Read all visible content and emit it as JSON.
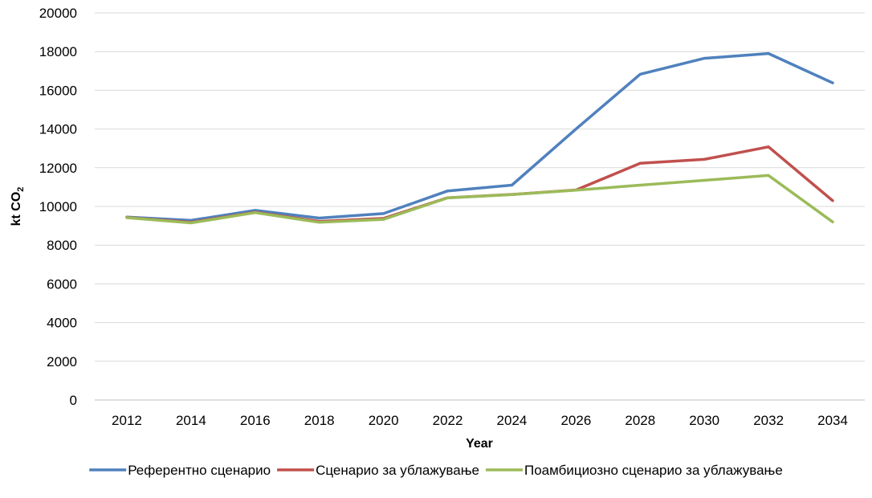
{
  "chart_data": {
    "type": "line",
    "title": "",
    "xlabel": "Year",
    "ylabel": "kt CO",
    "ylabel_subscript": "2",
    "ylim": [
      0,
      20000
    ],
    "yticks": [
      0,
      2000,
      4000,
      6000,
      8000,
      10000,
      12000,
      14000,
      16000,
      18000,
      20000
    ],
    "x": [
      "2012",
      "2014",
      "2016",
      "2018",
      "2020",
      "2022",
      "2024",
      "2026",
      "2028",
      "2030",
      "2032",
      "2034"
    ],
    "grid": true,
    "legend_position": "bottom",
    "series": [
      {
        "name": "Референтно сценарио",
        "color": "#4f81bd",
        "values": [
          9450,
          9280,
          9800,
          9400,
          9630,
          10800,
          11100,
          14000,
          16830,
          17650,
          17900,
          16380
        ]
      },
      {
        "name": "Сценарио за ублажување",
        "color": "#c0504d",
        "values": [
          9430,
          9180,
          9700,
          9230,
          9380,
          10450,
          10620,
          10850,
          12230,
          12430,
          13080,
          10300
        ]
      },
      {
        "name": "Поамбициозно сценарио за ублажување",
        "color": "#9bbb59",
        "values": [
          9420,
          9150,
          9680,
          9180,
          9330,
          10440,
          10610,
          10840,
          11100,
          11350,
          11600,
          9200
        ]
      }
    ]
  }
}
